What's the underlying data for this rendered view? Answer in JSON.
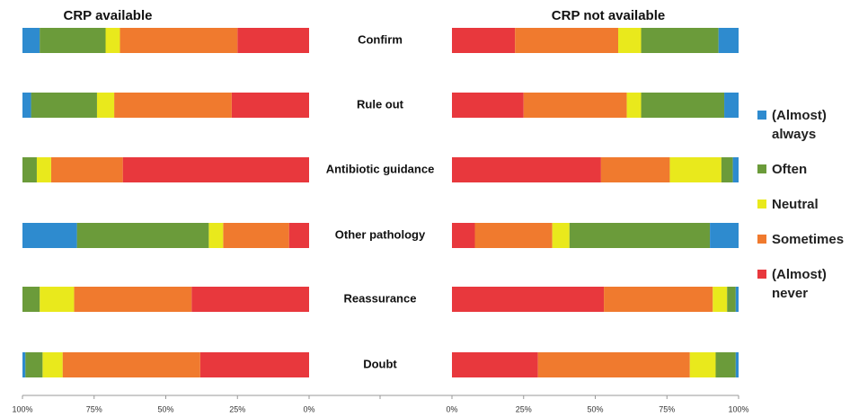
{
  "chart_data": [
    {
      "type": "bar",
      "orientation": "horizontal",
      "stacked": true,
      "title": "CRP available",
      "categories": [
        "Confirm",
        "Rule out",
        "Antibiotic guidance",
        "Other pathology",
        "Reassurance",
        "Doubt"
      ],
      "series": [
        {
          "name": "(Almost) always",
          "color": "#2e8bcf",
          "values": [
            6,
            3,
            0,
            19,
            0,
            1
          ]
        },
        {
          "name": "Often",
          "color": "#6b9b3a",
          "values": [
            23,
            23,
            5,
            46,
            6,
            6
          ]
        },
        {
          "name": "Neutral",
          "color": "#e9e91c",
          "values": [
            5,
            6,
            5,
            5,
            12,
            7
          ]
        },
        {
          "name": "Sometimes",
          "color": "#f07a2e",
          "values": [
            41,
            41,
            25,
            23,
            41,
            48
          ]
        },
        {
          "name": "(Almost) never",
          "color": "#e8383d",
          "values": [
            25,
            27,
            65,
            7,
            41,
            38
          ]
        }
      ],
      "xlim": [
        100,
        0
      ],
      "xticks": [
        {
          "value": 100,
          "label": "100%"
        },
        {
          "value": 75,
          "label": "75%"
        },
        {
          "value": 50,
          "label": "50%"
        },
        {
          "value": 25,
          "label": "25%"
        },
        {
          "value": 0,
          "label": "0%"
        }
      ]
    },
    {
      "type": "bar",
      "orientation": "horizontal",
      "stacked": true,
      "title": "CRP not available",
      "series": [
        {
          "name": "(Almost) always",
          "color": "#2e8bcf",
          "values": [
            7,
            5,
            2,
            10,
            1,
            1
          ]
        },
        {
          "name": "Often",
          "color": "#6b9b3a",
          "values": [
            27,
            29,
            4,
            49,
            3,
            7
          ]
        },
        {
          "name": "Neutral",
          "color": "#e9e91c",
          "values": [
            8,
            5,
            18,
            6,
            5,
            9
          ]
        },
        {
          "name": "Sometimes",
          "color": "#f07a2e",
          "values": [
            36,
            36,
            24,
            27,
            38,
            53
          ]
        },
        {
          "name": "(Almost) never",
          "color": "#e8383d",
          "values": [
            22,
            25,
            52,
            8,
            53,
            30
          ]
        }
      ],
      "xlim": [
        0,
        100
      ],
      "xticks": [
        {
          "value": 0,
          "label": "0%"
        },
        {
          "value": 25,
          "label": "25%"
        },
        {
          "value": 50,
          "label": "50%"
        },
        {
          "value": 75,
          "label": "75%"
        },
        {
          "value": 100,
          "label": "100%"
        }
      ]
    }
  ]
}
